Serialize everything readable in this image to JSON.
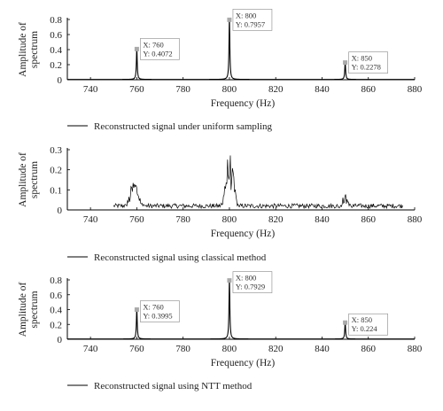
{
  "chart_data": [
    {
      "type": "line",
      "xlabel": "Frequency (Hz)",
      "ylabel": "Amplitude of spectrum",
      "xlim": [
        730,
        880
      ],
      "ylim": [
        0,
        0.8
      ],
      "xticks": [
        740,
        760,
        780,
        800,
        820,
        840,
        860,
        880
      ],
      "yticks": [
        0,
        0.2,
        0.4,
        0.6,
        0.8
      ],
      "ytick_labels": [
        "0",
        "0.2",
        "0.4",
        "0.6",
        "0.8"
      ],
      "legend": "Reconstructed signal under uniform sampling",
      "peaks": [
        {
          "x": 760,
          "y": 0.4072
        },
        {
          "x": 800,
          "y": 0.7957
        },
        {
          "x": 850,
          "y": 0.2278
        }
      ],
      "datatips": [
        {
          "x_text": "760",
          "y_text": "0.4072",
          "x": 760,
          "y": 0.4072
        },
        {
          "x_text": "800",
          "y_text": "0.7957",
          "x": 800,
          "y": 0.7957
        },
        {
          "x_text": "850",
          "y_text": "0.2278",
          "x": 850,
          "y": 0.2278
        }
      ],
      "style": "peaks",
      "color": "#000000"
    },
    {
      "type": "line",
      "xlabel": "Frequency (Hz)",
      "ylabel": "Amplitude of spectrum",
      "xlim": [
        730,
        880
      ],
      "ylim": [
        0,
        0.3
      ],
      "xticks": [
        740,
        760,
        780,
        800,
        820,
        840,
        860,
        880
      ],
      "yticks": [
        0,
        0.1,
        0.2,
        0.3
      ],
      "ytick_labels": [
        "0",
        "0.1",
        "0.2",
        "0.3"
      ],
      "legend": "Reconstructed signal using classical method",
      "style": "noisy",
      "x_range": [
        750,
        875
      ],
      "clusters": [
        {
          "center": 759,
          "width": 2.6,
          "peak": 0.16
        },
        {
          "center": 800,
          "width": 2.4,
          "peak": 0.29
        },
        {
          "center": 850,
          "width": 2.0,
          "peak": 0.08
        }
      ],
      "noise_floor": 0.025,
      "color": "#000000"
    },
    {
      "type": "line",
      "xlabel": "Frequency (Hz)",
      "ylabel": "Amplitude of spectrum",
      "xlim": [
        730,
        880
      ],
      "ylim": [
        0,
        0.8
      ],
      "xticks": [
        740,
        760,
        780,
        800,
        820,
        840,
        860,
        880
      ],
      "yticks": [
        0,
        0.2,
        0.4,
        0.6,
        0.8
      ],
      "ytick_labels": [
        "0",
        "0.2",
        "0.4",
        "0.6",
        "0.8"
      ],
      "legend": "Reconstructed signal using NTT method",
      "peaks": [
        {
          "x": 760,
          "y": 0.3995
        },
        {
          "x": 800,
          "y": 0.7929
        },
        {
          "x": 850,
          "y": 0.224
        }
      ],
      "datatips": [
        {
          "x_text": "760",
          "y_text": "0.3995",
          "x": 760,
          "y": 0.3995
        },
        {
          "x_text": "800",
          "y_text": "0.7929",
          "x": 800,
          "y": 0.7929
        },
        {
          "x_text": "850",
          "y_text": "0.224",
          "x": 850,
          "y": 0.224
        }
      ],
      "style": "peaks",
      "color": "#000000"
    }
  ]
}
